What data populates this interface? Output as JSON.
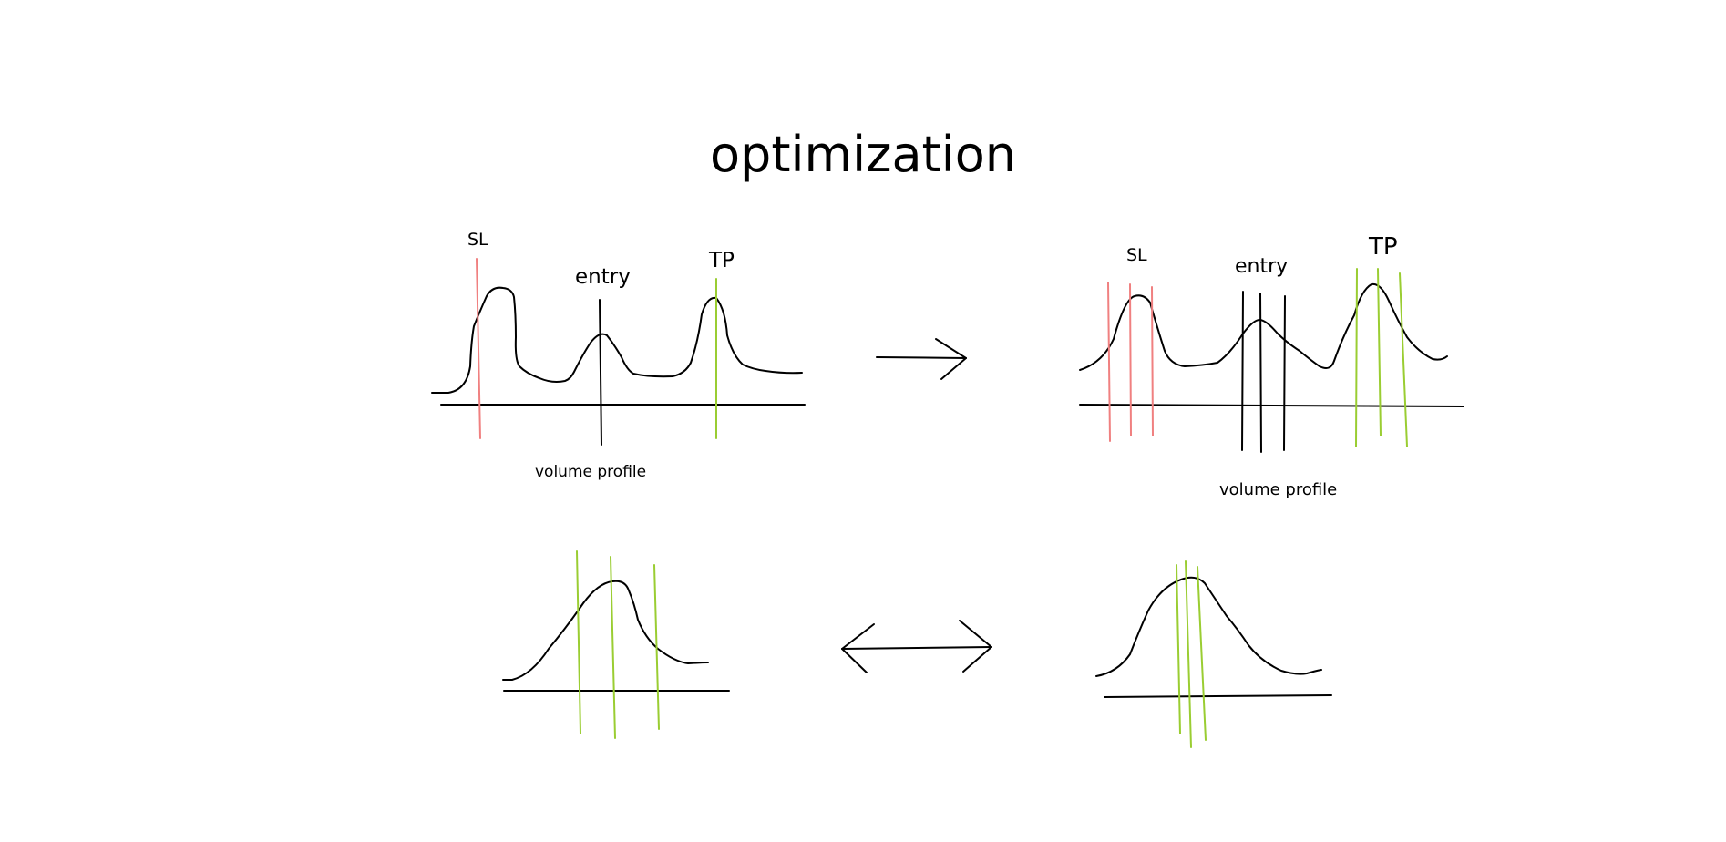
{
  "title": "optimization",
  "before": {
    "sl_label": "SL",
    "entry_label": "entry",
    "tp_label": "TP",
    "caption": "volume profile"
  },
  "after": {
    "sl_label": "SL",
    "entry_label": "entry",
    "tp_label": "TP",
    "caption": "volume profile"
  },
  "colors": {
    "stop_loss": "#f08080",
    "take_profit": "#9acd32",
    "ink": "#000000"
  },
  "arrows": {
    "top": "right-arrow-icon",
    "bottom": "double-arrow-icon"
  }
}
